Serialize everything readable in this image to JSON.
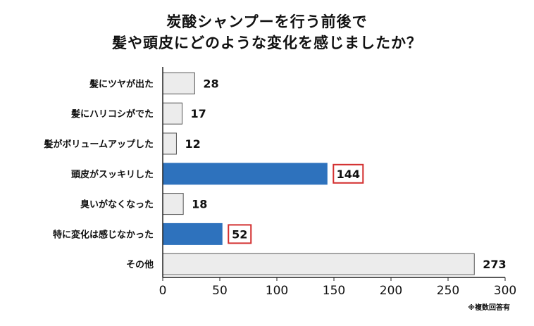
{
  "title_lines": [
    "炭酸シャンプーを行う前後で",
    "髪や頭皮にどのような変化を感じましたか？"
  ],
  "note": "※複数回答有",
  "colors": {
    "highlight_bar": "#2e72bd",
    "normal_bar": "#ececec",
    "bar_border": "#555555",
    "callout_border": "#d32f2f",
    "axis": "#222222"
  },
  "chart_data": {
    "type": "bar",
    "orientation": "horizontal",
    "categories": [
      "髪にツヤが出た",
      "髪にハリコシがでた",
      "髪がボリュームアップした",
      "頭皮がスッキリした",
      "臭いがなくなった",
      "特に変化は感じなかった",
      "その他"
    ],
    "values": [
      28,
      17,
      12,
      144,
      18,
      52,
      273
    ],
    "highlighted": [
      false,
      false,
      false,
      true,
      false,
      true,
      false
    ],
    "xlim": [
      0,
      300
    ],
    "xticks": [
      0,
      50,
      100,
      150,
      200,
      250,
      300
    ],
    "grid": false,
    "legend": "none",
    "title": "炭酸シャンプーを行う前後で 髪や頭皮にどのような変化を感じましたか？",
    "xlabel": "",
    "ylabel": ""
  }
}
